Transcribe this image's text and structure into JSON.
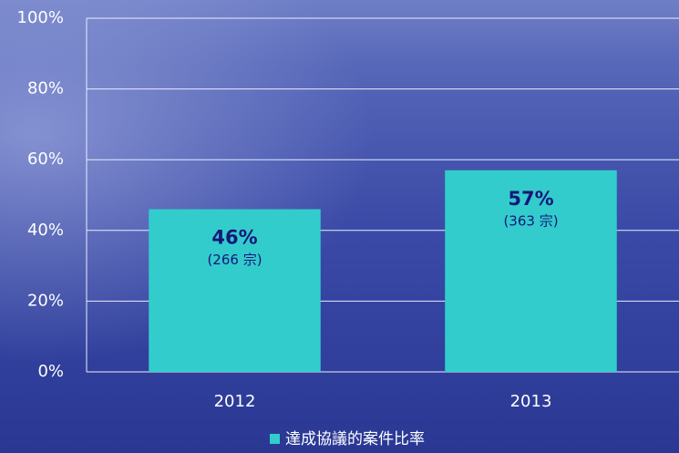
{
  "chart_data": {
    "type": "bar",
    "categories": [
      "2012",
      "2013"
    ],
    "series": [
      {
        "name": "達成協議的案件比率",
        "color": "#33cccc",
        "values": [
          46,
          57
        ],
        "value_labels": [
          "46%",
          "57%"
        ]
      }
    ],
    "case_labels": [
      "(266 宗)",
      "(363 宗)"
    ],
    "ylim": [
      0,
      100
    ],
    "yticks": [
      {
        "value": 0,
        "label": "0%"
      },
      {
        "value": 20,
        "label": "20%"
      },
      {
        "value": 40,
        "label": "40%"
      },
      {
        "value": 60,
        "label": "60%"
      },
      {
        "value": 80,
        "label": "80%"
      },
      {
        "value": 100,
        "label": "100%"
      }
    ],
    "grid": true,
    "legend": "bottom"
  }
}
